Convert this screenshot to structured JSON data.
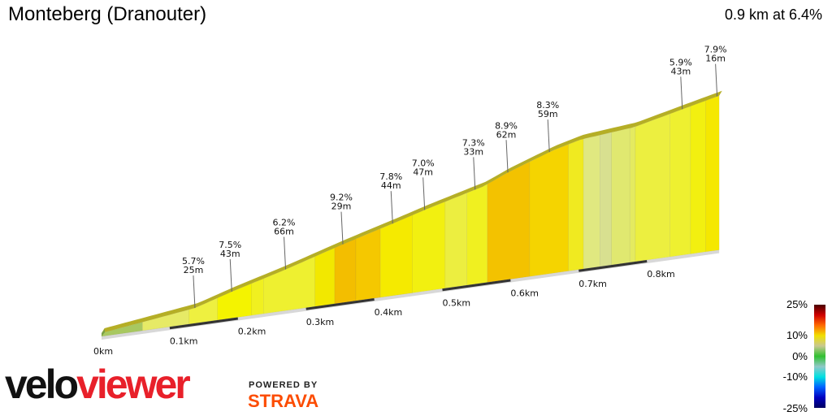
{
  "header": {
    "title": "Monteberg (Dranouter)",
    "summary": "0.9 km at 6.4%"
  },
  "branding": {
    "velo": "velo",
    "viewer": "viewer",
    "powered_by": "POWERED BY",
    "strava": "STRAVA"
  },
  "legend": {
    "labels": [
      "25%",
      "10%",
      "0%",
      "-10%",
      "-25%"
    ],
    "colors": [
      "#4a0000",
      "#d00000",
      "#ff6a00",
      "#f0e000",
      "#c8c890",
      "#30c030",
      "#90c8c8",
      "#00e0e0",
      "#0060ff",
      "#0000c0",
      "#000060"
    ]
  },
  "chart_data": {
    "type": "area",
    "title": "Monteberg (Dranouter)",
    "x_unit": "km",
    "profile": [
      {
        "km": 0.0,
        "elev_m": 0
      },
      {
        "km": 0.137,
        "elev_m": 4.5
      },
      {
        "km": 0.19,
        "elev_m": 8.6
      },
      {
        "km": 0.268,
        "elev_m": 14
      },
      {
        "km": 0.352,
        "elev_m": 20.4
      },
      {
        "km": 0.429,
        "elev_m": 25.8
      },
      {
        "km": 0.477,
        "elev_m": 29.3
      },
      {
        "km": 0.56,
        "elev_m": 34.8
      },
      {
        "km": 0.596,
        "elev_m": 38.7
      },
      {
        "km": 0.661,
        "elev_m": 44.5
      },
      {
        "km": 0.703,
        "elev_m": 47.2
      },
      {
        "km": 0.781,
        "elev_m": 49
      },
      {
        "km": 0.852,
        "elev_m": 53.2
      },
      {
        "km": 0.906,
        "elev_m": 56.3
      }
    ],
    "segments": [
      {
        "from": 0.0,
        "to": 0.06,
        "color": "#a8c860"
      },
      {
        "from": 0.06,
        "to": 0.128,
        "color": "#e6ea66"
      },
      {
        "from": 0.128,
        "to": 0.17,
        "color": "#eef040"
      },
      {
        "from": 0.17,
        "to": 0.22,
        "color": "#f4f300"
      },
      {
        "from": 0.22,
        "to": 0.238,
        "color": "#f0f020"
      },
      {
        "from": 0.238,
        "to": 0.313,
        "color": "#eef030"
      },
      {
        "from": 0.313,
        "to": 0.342,
        "color": "#f2e800"
      },
      {
        "from": 0.342,
        "to": 0.373,
        "color": "#f3be00"
      },
      {
        "from": 0.373,
        "to": 0.409,
        "color": "#f5c800"
      },
      {
        "from": 0.409,
        "to": 0.456,
        "color": "#f5ea00"
      },
      {
        "from": 0.456,
        "to": 0.504,
        "color": "#f2f010"
      },
      {
        "from": 0.504,
        "to": 0.536,
        "color": "#ecee40"
      },
      {
        "from": 0.536,
        "to": 0.566,
        "color": "#f0f020"
      },
      {
        "from": 0.566,
        "to": 0.628,
        "color": "#f3c200"
      },
      {
        "from": 0.628,
        "to": 0.685,
        "color": "#f5d400"
      },
      {
        "from": 0.685,
        "to": 0.707,
        "color": "#f0ea20"
      },
      {
        "from": 0.707,
        "to": 0.731,
        "color": "#e0e880"
      },
      {
        "from": 0.731,
        "to": 0.748,
        "color": "#d8e090"
      },
      {
        "from": 0.748,
        "to": 0.775,
        "color": "#e0e870"
      },
      {
        "from": 0.775,
        "to": 0.783,
        "color": "#e4ea60"
      },
      {
        "from": 0.783,
        "to": 0.834,
        "color": "#ecef40"
      },
      {
        "from": 0.834,
        "to": 0.864,
        "color": "#eef030"
      },
      {
        "from": 0.864,
        "to": 0.886,
        "color": "#f2f010"
      },
      {
        "from": 0.886,
        "to": 0.906,
        "color": "#f5e800"
      }
    ],
    "annotations": [
      {
        "km": 0.137,
        "gradient": "5.7%",
        "length": "25m"
      },
      {
        "km": 0.191,
        "gradient": "7.5%",
        "length": "43m"
      },
      {
        "km": 0.27,
        "gradient": "6.2%",
        "length": "66m"
      },
      {
        "km": 0.354,
        "gradient": "9.2%",
        "length": "29m"
      },
      {
        "km": 0.427,
        "gradient": "7.8%",
        "length": "44m"
      },
      {
        "km": 0.474,
        "gradient": "7.0%",
        "length": "47m"
      },
      {
        "km": 0.548,
        "gradient": "7.3%",
        "length": "33m"
      },
      {
        "km": 0.596,
        "gradient": "8.9%",
        "length": "62m"
      },
      {
        "km": 0.657,
        "gradient": "8.3%",
        "length": "59m"
      },
      {
        "km": 0.852,
        "gradient": "5.9%",
        "length": "43m"
      },
      {
        "km": 0.903,
        "gradient": "7.9%",
        "length": "16m"
      }
    ],
    "x_ticks": [
      "0km",
      "0.1km",
      "0.2km",
      "0.3km",
      "0.4km",
      "0.5km",
      "0.6km",
      "0.7km",
      "0.8km"
    ],
    "colors": {
      "edge": "#a8a000",
      "base": "#d8d8d8",
      "tick_band": "#333333"
    }
  }
}
